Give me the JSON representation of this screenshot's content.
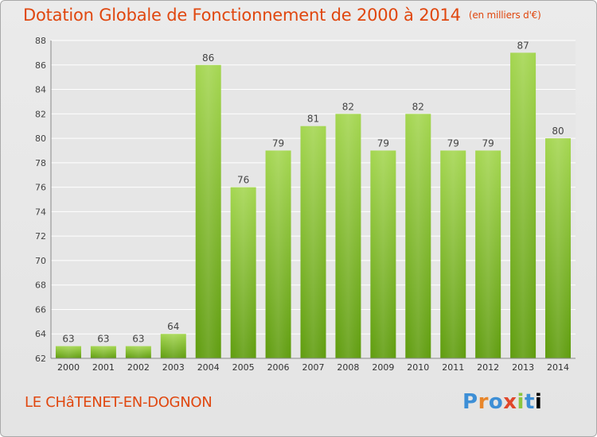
{
  "header": {
    "title": "Dotation Globale de Fonctionnement de 2000 à 2014",
    "unit": "(en milliers d'€)"
  },
  "footer": {
    "commune": "LE CHâTENET-EN-DOGNON",
    "logo_letters": [
      "P",
      "r",
      "o",
      "x",
      "i",
      "t",
      "i"
    ]
  },
  "colors": {
    "title": "#e0470f",
    "bar_light": "#a4d650",
    "bar_dark": "#5f9c0e",
    "grid": "#ffffff"
  },
  "chart_data": {
    "type": "bar",
    "title": "Dotation Globale de Fonctionnement de 2000 à 2014",
    "xlabel": "",
    "ylabel": "",
    "categories": [
      "2000",
      "2001",
      "2002",
      "2003",
      "2004",
      "2005",
      "2006",
      "2007",
      "2008",
      "2009",
      "2010",
      "2011",
      "2012",
      "2013",
      "2014"
    ],
    "values": [
      63,
      63,
      63,
      64,
      86,
      76,
      79,
      81,
      82,
      79,
      82,
      79,
      79,
      87,
      80
    ],
    "ylim": [
      62,
      88
    ],
    "yticks": [
      62,
      64,
      66,
      68,
      70,
      72,
      74,
      76,
      78,
      80,
      82,
      84,
      86,
      88
    ],
    "grid": true,
    "legend": "none"
  }
}
